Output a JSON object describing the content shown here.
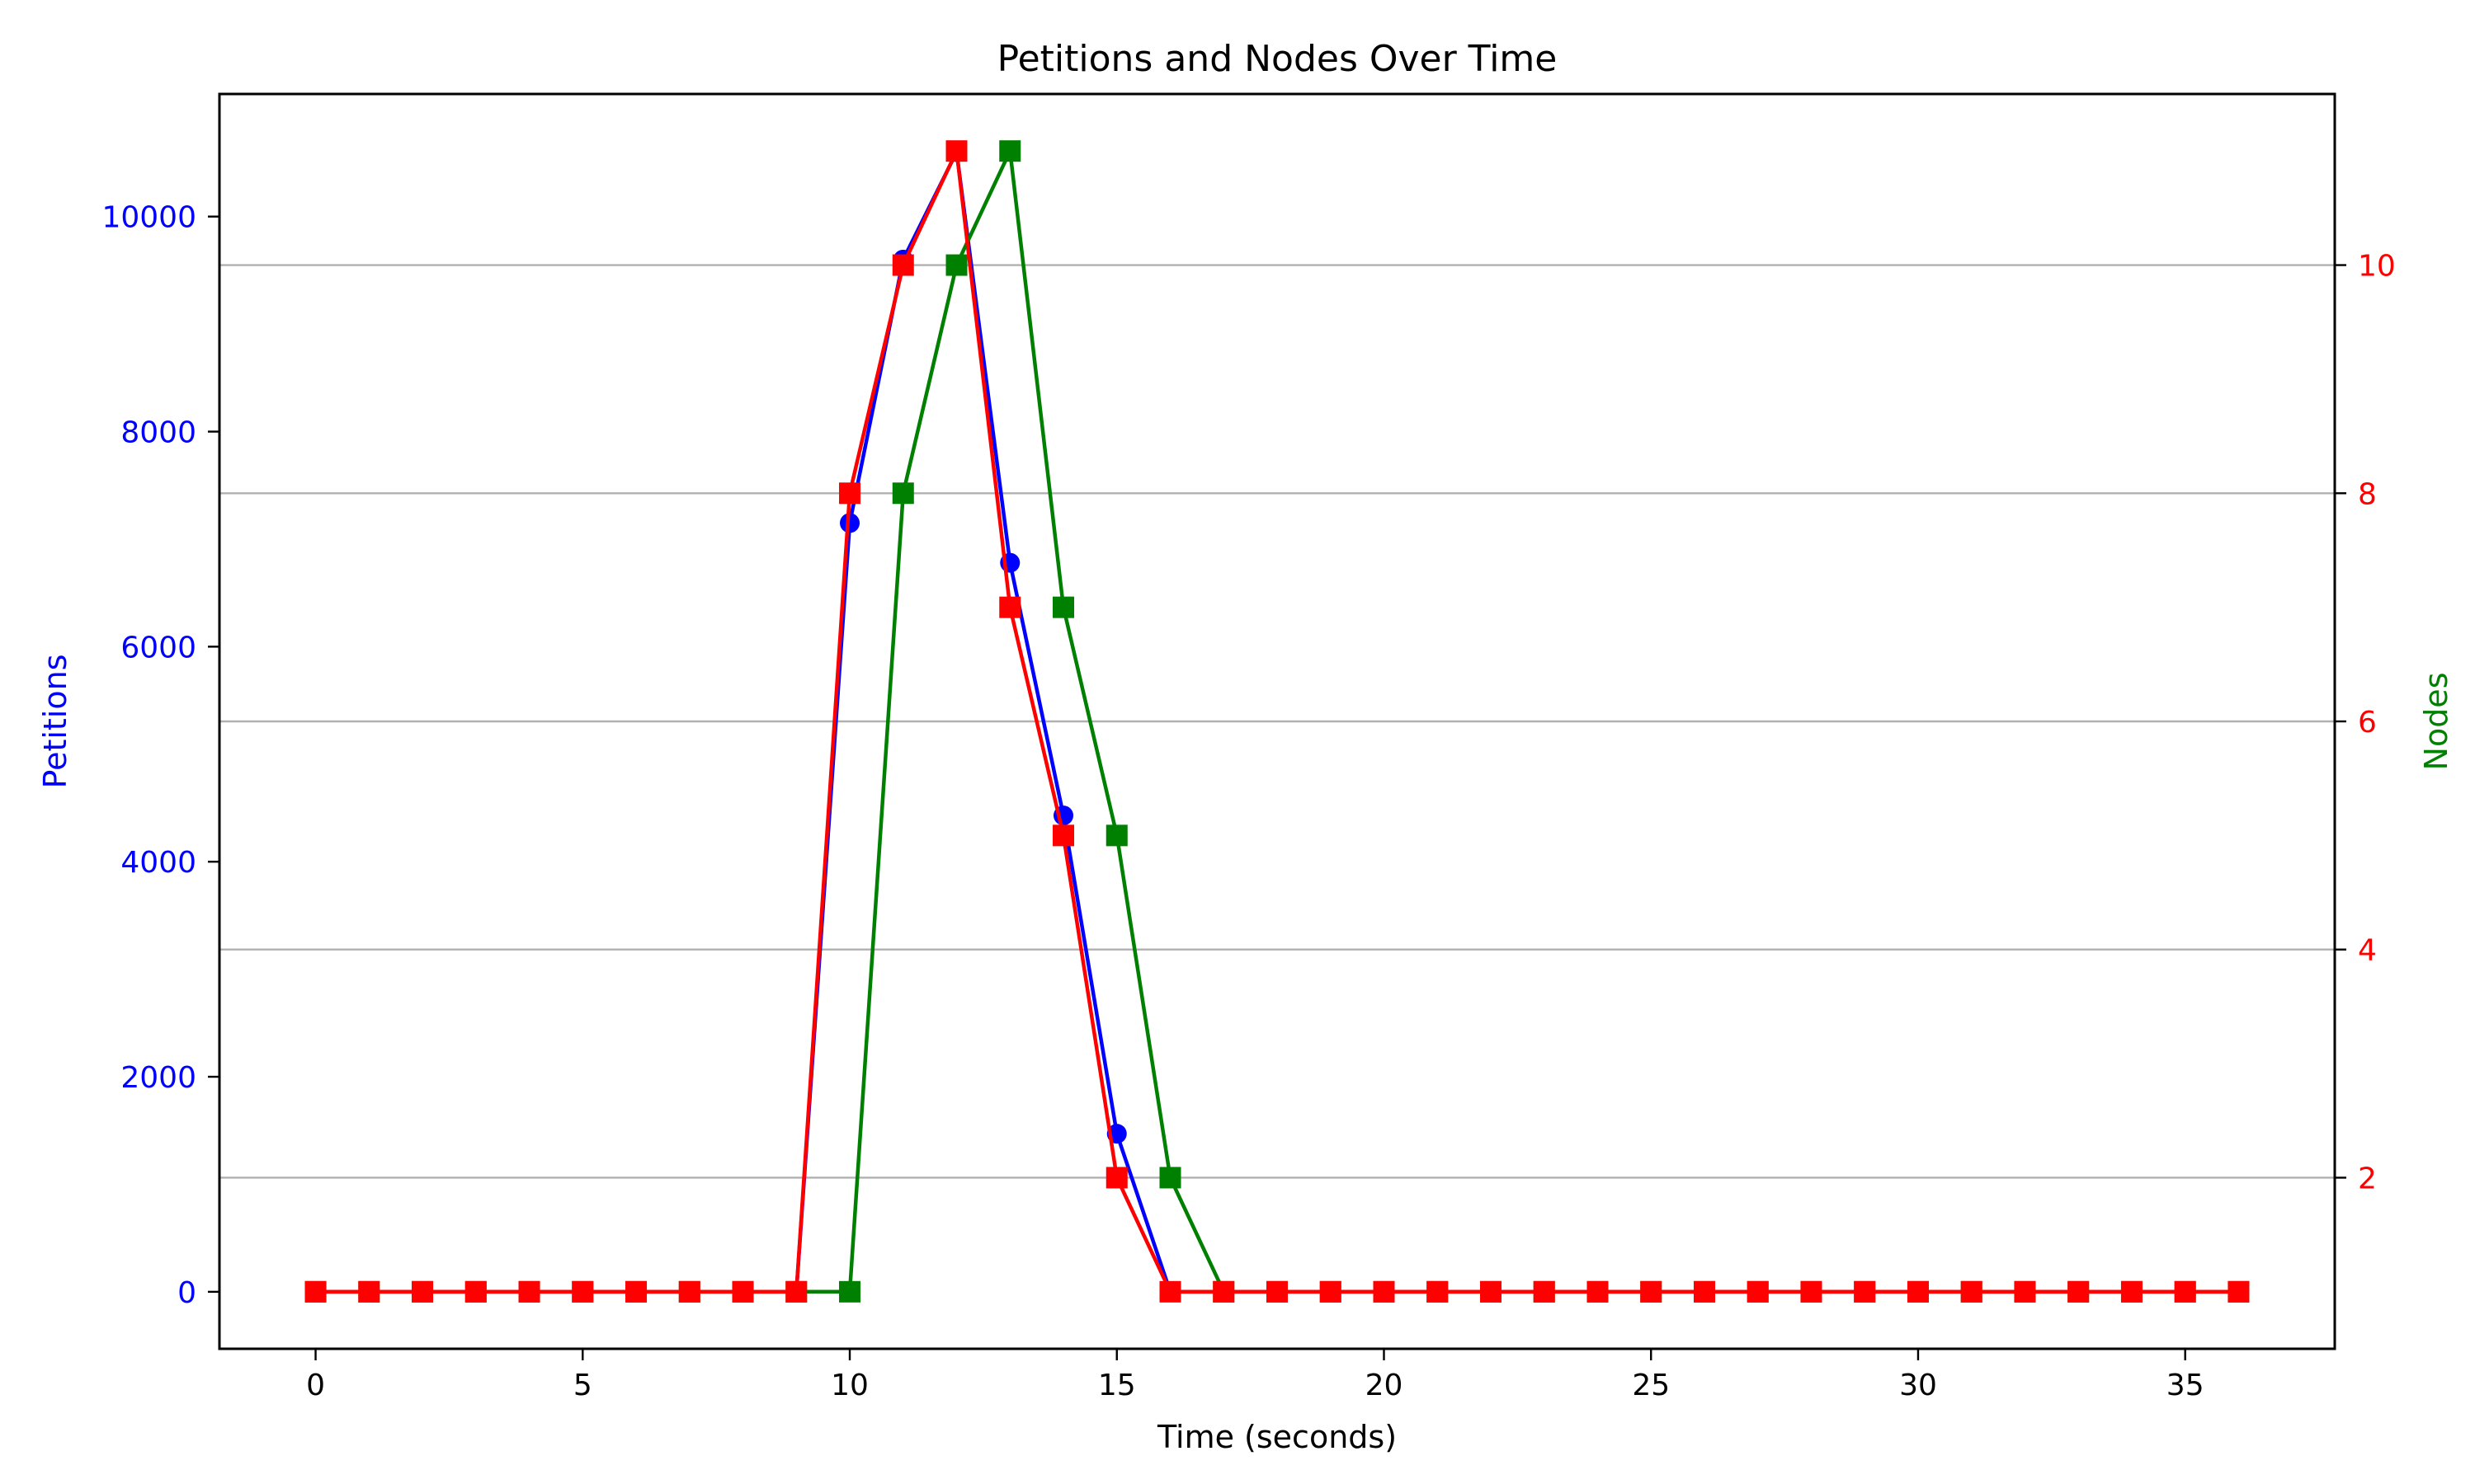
{
  "chart_data": {
    "type": "line",
    "title": "Petitions and Nodes Over Time",
    "xlabel": "Time (seconds)",
    "ylabel_left": "Petitions",
    "ylabel_right": "Nodes",
    "xlim": [
      -1.8,
      37.8
    ],
    "ylim_left": [
      -530,
      11140
    ],
    "ylim_right": [
      0.5,
      11.5
    ],
    "x_ticks": [
      0,
      5,
      10,
      15,
      20,
      25,
      30,
      35
    ],
    "y_left_ticks": [
      0,
      2000,
      4000,
      6000,
      8000,
      10000
    ],
    "y_right_ticks": [
      2,
      4,
      6,
      8,
      10
    ],
    "grid": "horizontal lines at right-axis ticks",
    "colors": {
      "left_axis": "#0000ff",
      "right_axis": "#ff0000",
      "right_label": "#008000"
    },
    "x": [
      0,
      1,
      2,
      3,
      4,
      5,
      6,
      7,
      8,
      9,
      10,
      11,
      12,
      13,
      14,
      15,
      16,
      17,
      18,
      19,
      20,
      21,
      22,
      23,
      24,
      25,
      26,
      27,
      28,
      29,
      30,
      31,
      32,
      33,
      34,
      35,
      36
    ],
    "series": [
      {
        "axis": "left",
        "color": "#0000ff",
        "marker": "circle",
        "values": [
          0,
          0,
          0,
          0,
          0,
          0,
          0,
          0,
          0,
          0,
          7150,
          9600,
          10600,
          6780,
          4430,
          1470,
          0,
          0,
          0,
          0,
          0,
          0,
          0,
          0,
          0,
          0,
          0,
          0,
          0,
          0,
          0,
          0,
          0,
          0,
          0,
          0,
          0
        ]
      },
      {
        "axis": "right",
        "color": "#008000",
        "marker": "square",
        "values": [
          1,
          1,
          1,
          1,
          1,
          1,
          1,
          1,
          1,
          1,
          1,
          8,
          10,
          11,
          7,
          5,
          2,
          1,
          1,
          1,
          1,
          1,
          1,
          1,
          1,
          1,
          1,
          1,
          1,
          1,
          1,
          1,
          1,
          1,
          1,
          1,
          1
        ]
      },
      {
        "axis": "right",
        "color": "#ff0000",
        "marker": "square",
        "values": [
          1,
          1,
          1,
          1,
          1,
          1,
          1,
          1,
          1,
          1,
          8,
          10,
          11,
          7,
          5,
          2,
          1,
          1,
          1,
          1,
          1,
          1,
          1,
          1,
          1,
          1,
          1,
          1,
          1,
          1,
          1,
          1,
          1,
          1,
          1,
          1,
          1
        ]
      }
    ]
  }
}
